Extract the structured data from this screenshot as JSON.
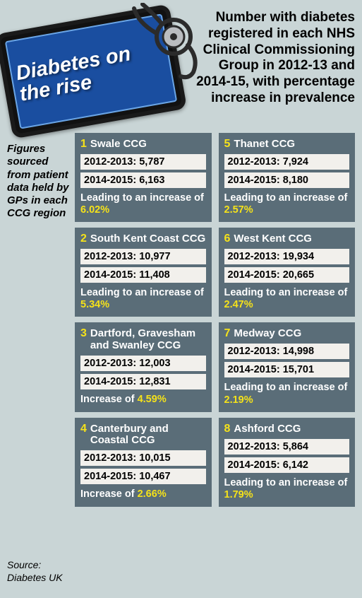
{
  "colors": {
    "bg": "#c9d5d6",
    "card_bg": "#5a6d78",
    "accent": "#f5e21a",
    "text_dark": "#111111",
    "stat_bg": "#f2f0ec"
  },
  "tablet_title": "Diabetes on the rise",
  "intro_text": "Number with diabetes registered in each NHS Clinical Commissioning Group in 2012-13 and 2014-15, with percentage increase in prevalence",
  "side_note": "Figures sourced from patient data held by GPs in each CCG region",
  "source": "Source: Diabetes UK",
  "lead_phrase_long": "Leading to an increase of",
  "lead_phrase_short": "Increase of",
  "cards": [
    {
      "rank": "1",
      "name": "Swale CCG",
      "y1": "2012-2013: 5,787",
      "y2": "2014-2015: 6,163",
      "pct": "6.02%",
      "label_mode": "long"
    },
    {
      "rank": "5",
      "name": "Thanet CCG",
      "y1": "2012-2013: 7,924",
      "y2": "2014-2015: 8,180",
      "pct": "2.57%",
      "label_mode": "long"
    },
    {
      "rank": "2",
      "name": "South Kent Coast CCG",
      "y1": "2012-2013: 10,977",
      "y2": "2014-2015: 11,408",
      "pct": "5.34%",
      "label_mode": "long"
    },
    {
      "rank": "6",
      "name": "West Kent CCG",
      "y1": "2012-2013: 19,934",
      "y2": "2014-2015: 20,665",
      "pct": "2.47%",
      "label_mode": "long"
    },
    {
      "rank": "3",
      "name": "Dartford, Gravesham and Swanley CCG",
      "y1": "2012-2013: 12,003",
      "y2": "2014-2015: 12,831",
      "pct": "4.59%",
      "label_mode": "short"
    },
    {
      "rank": "7",
      "name": "Medway CCG",
      "y1": "2012-2013: 14,998",
      "y2": "2014-2015: 15,701",
      "pct": "2.19%",
      "label_mode": "long"
    },
    {
      "rank": "4",
      "name": "Canterbury and Coastal CCG",
      "y1": "2012-2013: 10,015",
      "y2": "2014-2015: 10,467",
      "pct": "2.66%",
      "label_mode": "short"
    },
    {
      "rank": "8",
      "name": "Ashford CCG",
      "y1": "2012-2013: 5,864",
      "y2": "2014-2015: 6,142",
      "pct": "1.79%",
      "label_mode": "long"
    }
  ]
}
